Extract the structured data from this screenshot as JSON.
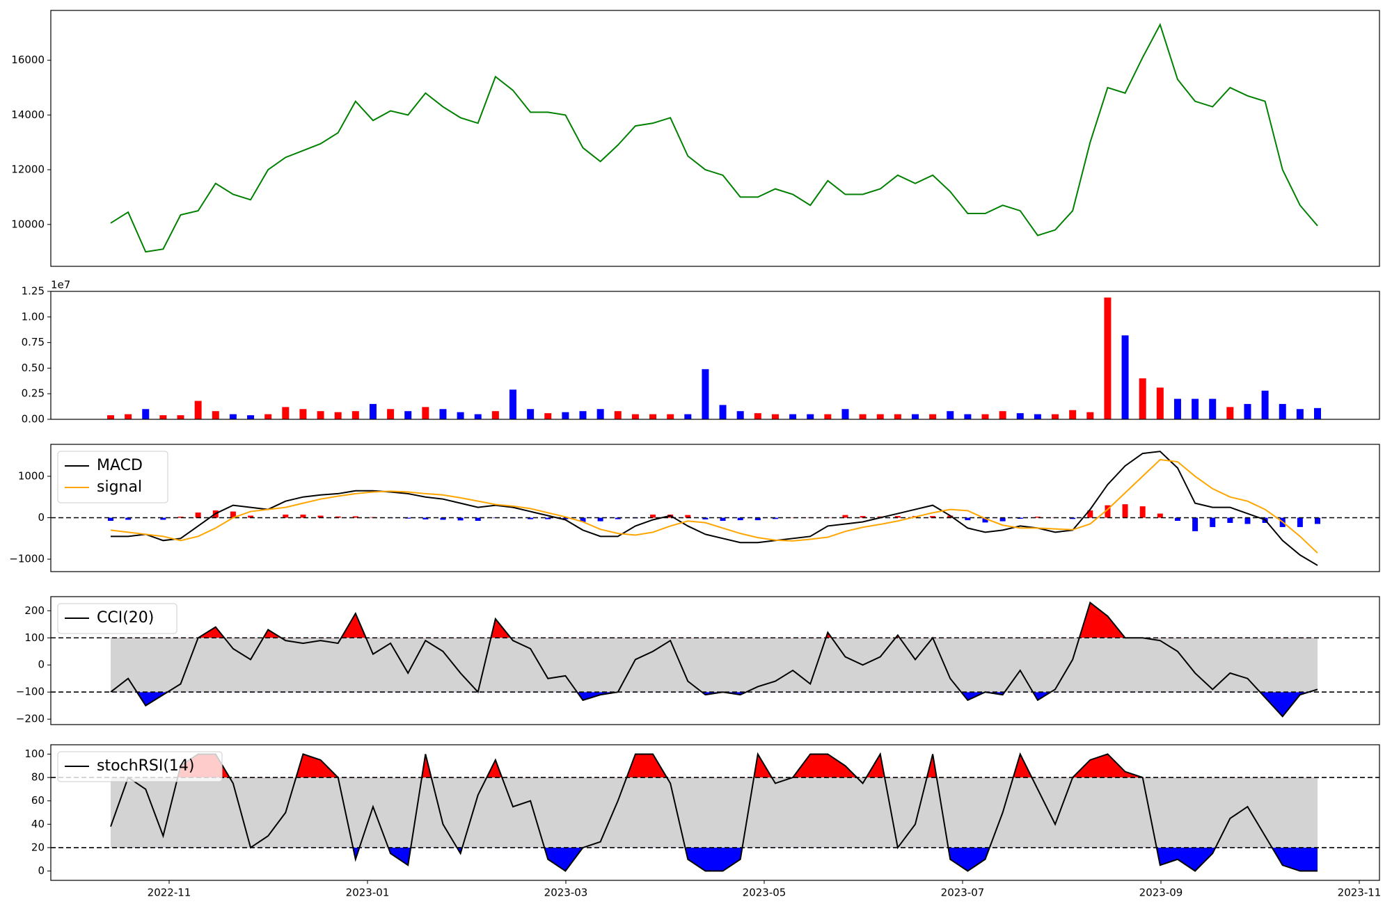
{
  "chart_data": [
    {
      "type": "line",
      "color": "green",
      "values": [
        10050,
        10450,
        9000,
        9100,
        10350,
        10500,
        11500,
        11100,
        10900,
        12000,
        12450,
        12700,
        12950,
        13350,
        14500,
        13800,
        14150,
        14000,
        14800,
        14300,
        13900,
        13700,
        15400,
        14900,
        14100,
        14100,
        14000,
        12800,
        12300,
        12900,
        13600,
        13700,
        13900,
        12500,
        12000,
        11800,
        11000,
        11000,
        11300,
        11100,
        10700,
        11600,
        11100,
        11100,
        11300,
        11800,
        11500,
        11800,
        11200,
        10400,
        10400,
        10700,
        10500,
        9600,
        9800,
        10500,
        13000,
        15000,
        14800,
        16100,
        17300,
        15300,
        14500,
        14300,
        15000,
        14700,
        14500,
        12000,
        10700,
        9950
      ],
      "ylim": [
        8470,
        17820
      ],
      "yticks": [
        10000,
        12000,
        14000,
        16000
      ]
    },
    {
      "type": "bar",
      "offset_label": "1e7",
      "up_color": "red",
      "down_color": "blue",
      "values": [
        0.04,
        0.05,
        0.1,
        0.04,
        0.04,
        0.18,
        0.08,
        0.05,
        0.04,
        0.05,
        0.12,
        0.1,
        0.08,
        0.07,
        0.08,
        0.15,
        0.1,
        0.08,
        0.12,
        0.1,
        0.07,
        0.05,
        0.08,
        0.29,
        0.1,
        0.06,
        0.07,
        0.08,
        0.1,
        0.08,
        0.05,
        0.05,
        0.05,
        0.05,
        0.49,
        0.14,
        0.08,
        0.06,
        0.05,
        0.05,
        0.05,
        0.05,
        0.1,
        0.05,
        0.05,
        0.05,
        0.05,
        0.05,
        0.08,
        0.05,
        0.05,
        0.08,
        0.06,
        0.05,
        0.05,
        0.09,
        0.07,
        1.19,
        0.82,
        0.4,
        0.31,
        0.2,
        0.2,
        0.2,
        0.12,
        0.15,
        0.28,
        0.15,
        0.1,
        0.11
      ],
      "ylim": [
        0,
        1.25
      ],
      "yticks": [
        {
          "value": 0,
          "label": "0.00"
        },
        0.25,
        {
          "value": 0.5,
          "label": "0.50"
        },
        0.75,
        {
          "value": 1,
          "label": "1.00"
        },
        1.25
      ]
    },
    {
      "type": "macd",
      "legend": "upper left",
      "levels": [
        0
      ],
      "series": [
        {
          "name": "MACD",
          "color": "black",
          "values": [
            -450,
            -450,
            -400,
            -550,
            -500,
            -200,
            100,
            300,
            250,
            200,
            400,
            500,
            550,
            580,
            650,
            650,
            620,
            580,
            500,
            450,
            350,
            250,
            300,
            250,
            150,
            50,
            -50,
            -300,
            -450,
            -450,
            -200,
            -50,
            50,
            -200,
            -400,
            -500,
            -600,
            -600,
            -550,
            -500,
            -450,
            -200,
            -150,
            -100,
            0,
            100,
            200,
            300,
            50,
            -250,
            -350,
            -300,
            -200,
            -250,
            -350,
            -300,
            200,
            800,
            1250,
            1550,
            1600,
            1200,
            350,
            250,
            250,
            100,
            -50,
            -550,
            -900,
            -1150
          ]
        },
        {
          "name": "signal",
          "color": "orange",
          "values": [
            -300,
            -350,
            -400,
            -450,
            -550,
            -450,
            -250,
            0,
            150,
            200,
            250,
            350,
            450,
            520,
            580,
            620,
            640,
            620,
            580,
            550,
            480,
            400,
            320,
            280,
            220,
            120,
            20,
            -100,
            -280,
            -380,
            -420,
            -350,
            -200,
            -80,
            -120,
            -250,
            -380,
            -480,
            -540,
            -560,
            -520,
            -470,
            -330,
            -230,
            -160,
            -80,
            20,
            120,
            200,
            170,
            -20,
            -180,
            -250,
            -250,
            -270,
            -290,
            -150,
            200,
            600,
            1000,
            1400,
            1350,
            1000,
            700,
            500,
            400,
            200,
            -100,
            -450,
            -850
          ]
        }
      ],
      "histogram": {
        "up_color": "red",
        "down_color": "blue",
        "values": [
          -75,
          -50,
          0,
          -50,
          25,
          125,
          175,
          150,
          50,
          0,
          75,
          75,
          50,
          30,
          35,
          15,
          -10,
          -20,
          -40,
          -50,
          -65,
          -75,
          -10,
          -15,
          -35,
          -35,
          -35,
          -100,
          -85,
          -35,
          -15,
          75,
          75,
          65,
          -40,
          -75,
          -60,
          -60,
          -30,
          5,
          10,
          10,
          65,
          40,
          30,
          40,
          40,
          40,
          50,
          -60,
          -115,
          -85,
          -25,
          25,
          10,
          -30,
          175,
          300,
          325,
          275,
          100,
          -75,
          -325,
          -225,
          -125,
          -150,
          -125,
          -225,
          -225,
          -150
        ]
      },
      "ylim": [
        -1300,
        1770
      ],
      "yticks": [
        {
          "value": -1000,
          "label": "−1000"
        },
        0,
        1000
      ]
    },
    {
      "type": "oscillator",
      "legend": "upper left",
      "levels": [
        -100,
        100
      ],
      "band_color": "lightgray",
      "upper_fill": "red",
      "lower_fill": "blue",
      "series": [
        {
          "name": "CCI(20)",
          "color": "black",
          "values": [
            -100,
            -50,
            -150,
            -110,
            -70,
            100,
            140,
            60,
            20,
            130,
            90,
            80,
            90,
            80,
            190,
            40,
            80,
            -30,
            90,
            50,
            -30,
            -100,
            170,
            90,
            60,
            -50,
            -40,
            -130,
            -110,
            -100,
            20,
            50,
            90,
            -60,
            -110,
            -100,
            -110,
            -80,
            -60,
            -20,
            -70,
            120,
            30,
            0,
            30,
            110,
            20,
            100,
            -50,
            -130,
            -100,
            -110,
            -20,
            -130,
            -90,
            20,
            230,
            180,
            100,
            100,
            90,
            50,
            -30,
            -90,
            -30,
            -50,
            -120,
            -190,
            -110,
            -90
          ]
        }
      ],
      "ylim": [
        -220,
        252
      ],
      "yticks": [
        {
          "value": -200,
          "label": "−200"
        },
        {
          "value": -100,
          "label": "−100"
        },
        0,
        100,
        200
      ]
    },
    {
      "type": "oscillator",
      "legend": "upper left",
      "levels": [
        20,
        80
      ],
      "band_color": "lightgray",
      "upper_fill": "red",
      "lower_fill": "blue",
      "series": [
        {
          "name": "stochRSI(14)",
          "color": "black",
          "values": [
            38,
            80,
            70,
            30,
            90,
            100,
            100,
            75,
            20,
            30,
            50,
            100,
            95,
            80,
            10,
            55,
            15,
            5,
            100,
            40,
            15,
            65,
            95,
            55,
            60,
            10,
            0,
            20,
            25,
            60,
            100,
            100,
            75,
            10,
            0,
            0,
            10,
            100,
            75,
            80,
            100,
            100,
            90,
            75,
            100,
            20,
            40,
            100,
            10,
            0,
            10,
            50,
            100,
            70,
            40,
            80,
            95,
            100,
            85,
            80,
            5,
            10,
            0,
            15,
            45,
            55,
            30,
            5,
            0,
            0
          ]
        }
      ],
      "ylim": [
        -8,
        108
      ],
      "yticks": [
        0,
        20,
        40,
        60,
        80,
        100
      ],
      "xticks": [
        "2022-11",
        "2023-01",
        "2023-03",
        "2023-05",
        "2023-07",
        "2023-09",
        "2023-11"
      ]
    }
  ]
}
